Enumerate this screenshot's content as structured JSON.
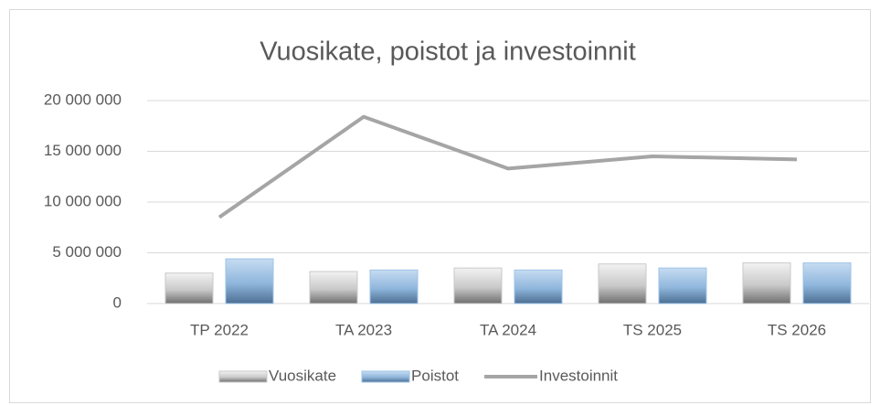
{
  "chart_data": {
    "type": "bar",
    "title": "Vuosikate, poistot ja investoinnit",
    "categories": [
      "TP 2022",
      "TA 2023",
      "TA 2024",
      "TS 2025",
      "TS 2026"
    ],
    "series": [
      {
        "name": "Vuosikate",
        "type": "bar",
        "color": "#c9c9c9",
        "values": [
          3000000,
          3150000,
          3500000,
          3900000,
          4000000
        ]
      },
      {
        "name": "Poistot",
        "type": "bar",
        "color": "#9dc3e6",
        "values": [
          4400000,
          3300000,
          3300000,
          3500000,
          4000000
        ]
      },
      {
        "name": "Investoinnit",
        "type": "line",
        "color": "#a5a5a5",
        "values": [
          8500000,
          18400000,
          13300000,
          14500000,
          14200000
        ]
      }
    ],
    "ylim": [
      0,
      20000000
    ],
    "yticks": [
      0,
      {
        "value": 5000000,
        "label": "5 000 000"
      },
      {
        "value": 10000000,
        "label": "10 000 000"
      },
      {
        "value": 15000000,
        "label": "15 000 000"
      },
      {
        "value": 20000000,
        "label": "20 000 000"
      }
    ],
    "grid": true,
    "legend": "bottom"
  }
}
